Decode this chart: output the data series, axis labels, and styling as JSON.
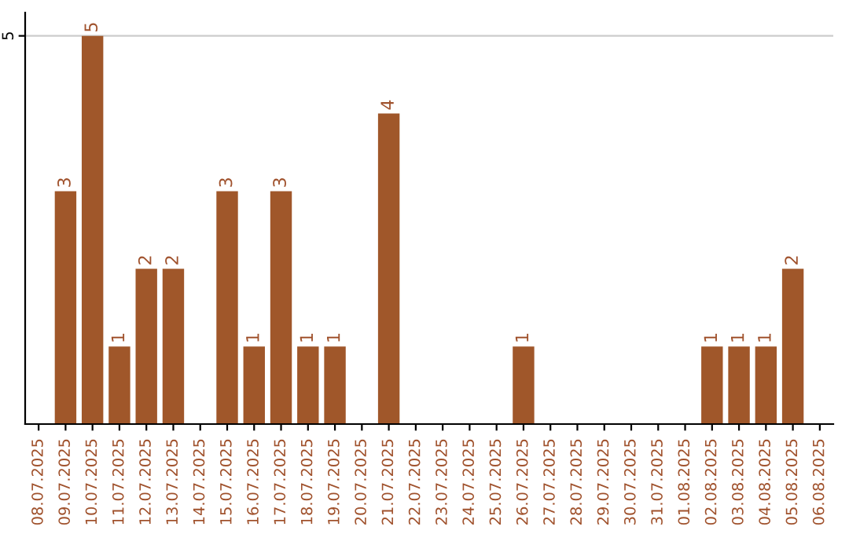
{
  "chart_data": {
    "type": "bar",
    "categories": [
      "08.07.2025",
      "09.07.2025",
      "10.07.2025",
      "11.07.2025",
      "12.07.2025",
      "13.07.2025",
      "14.07.2025",
      "15.07.2025",
      "16.07.2025",
      "17.07.2025",
      "18.07.2025",
      "19.07.2025",
      "20.07.2025",
      "21.07.2025",
      "22.07.2025",
      "23.07.2025",
      "24.07.2025",
      "25.07.2025",
      "26.07.2025",
      "27.07.2025",
      "28.07.2025",
      "29.07.2025",
      "30.07.2025",
      "31.07.2025",
      "01.08.2025",
      "02.08.2025",
      "03.08.2025",
      "04.08.2025",
      "05.08.2025",
      "06.08.2025"
    ],
    "values": [
      0,
      3,
      5,
      1,
      2,
      2,
      0,
      3,
      1,
      3,
      1,
      1,
      0,
      4,
      0,
      0,
      0,
      0,
      1,
      0,
      0,
      0,
      0,
      0,
      0,
      1,
      1,
      1,
      2,
      0
    ],
    "value_labels": [
      null,
      "3",
      "5",
      "1",
      "2",
      "2",
      null,
      "3",
      "1",
      "3",
      "1",
      "1",
      null,
      "4",
      null,
      null,
      null,
      null,
      "1",
      null,
      null,
      null,
      null,
      null,
      null,
      "1",
      "1",
      "1",
      "2",
      null
    ],
    "color": "#a0572a",
    "ylim": [
      0,
      5.3
    ],
    "yticks": [
      5
    ],
    "grid": "y"
  }
}
